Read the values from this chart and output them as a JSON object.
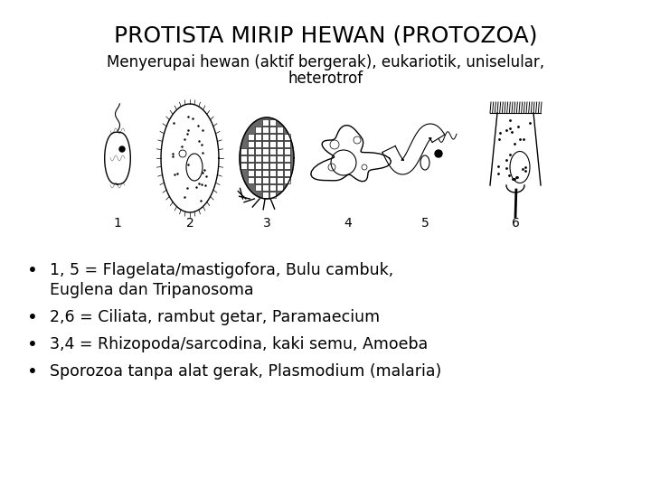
{
  "title": "PROTISTA MIRIP HEWAN (PROTOZOA)",
  "subtitle_line1": "Menyerupai hewan (aktif bergerak), eukariotik, uniselular,",
  "subtitle_line2": "heterotrof",
  "title_fontsize": 18,
  "subtitle_fontsize": 12,
  "bg_color": "#ffffff",
  "text_color": "#000000",
  "bullet_texts": [
    "1, 5 = Flagelata/mastigofora, Bulu cambuk,",
    "       Euglena dan Tripanosoma",
    "2,6 = Ciliata, rambut getar, Paramaecium",
    "3,4 = Rhizopoda/sarcodina, kaki semu, Amoeba",
    "Sporozoa tanpa alat gerak, Plasmodium (malaria)"
  ],
  "bullet_fontsize": 12.5,
  "numbers": [
    "1",
    "2",
    "3",
    "4",
    "5",
    "6"
  ],
  "num_fontsize": 10
}
